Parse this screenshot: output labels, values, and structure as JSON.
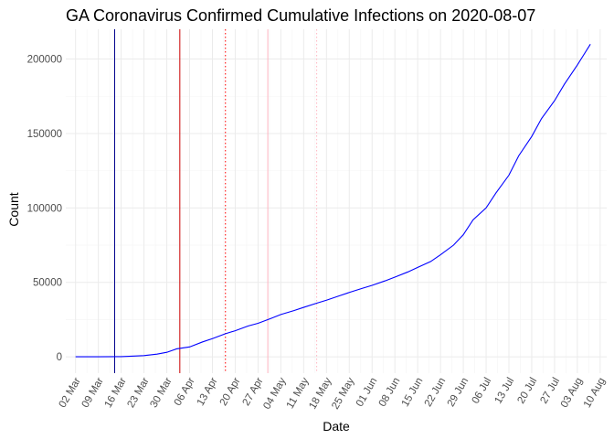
{
  "chart_data": {
    "type": "line",
    "title": "GA Coronavirus Confirmed Cumulative Infections on 2020-08-07",
    "xlabel": "Date",
    "ylabel": "Count",
    "x_range": [
      "2020-02-28",
      "2020-08-12"
    ],
    "ylim": [
      -11000,
      220000
    ],
    "x_ticks": [
      {
        "date": "2020-03-02",
        "label": "02 Mar"
      },
      {
        "date": "2020-03-09",
        "label": "09 Mar"
      },
      {
        "date": "2020-03-16",
        "label": "16 Mar"
      },
      {
        "date": "2020-03-23",
        "label": "23 Mar"
      },
      {
        "date": "2020-03-30",
        "label": "30 Mar"
      },
      {
        "date": "2020-04-06",
        "label": "06 Apr"
      },
      {
        "date": "2020-04-13",
        "label": "13 Apr"
      },
      {
        "date": "2020-04-20",
        "label": "20 Apr"
      },
      {
        "date": "2020-04-27",
        "label": "27 Apr"
      },
      {
        "date": "2020-05-04",
        "label": "04 May"
      },
      {
        "date": "2020-05-11",
        "label": "11 May"
      },
      {
        "date": "2020-05-18",
        "label": "18 May"
      },
      {
        "date": "2020-05-25",
        "label": "25 May"
      },
      {
        "date": "2020-06-01",
        "label": "01 Jun"
      },
      {
        "date": "2020-06-08",
        "label": "08 Jun"
      },
      {
        "date": "2020-06-15",
        "label": "15 Jun"
      },
      {
        "date": "2020-06-22",
        "label": "22 Jun"
      },
      {
        "date": "2020-06-29",
        "label": "29 Jun"
      },
      {
        "date": "2020-07-06",
        "label": "06 Jul"
      },
      {
        "date": "2020-07-13",
        "label": "13 Jul"
      },
      {
        "date": "2020-07-20",
        "label": "20 Jul"
      },
      {
        "date": "2020-07-27",
        "label": "27 Jul"
      },
      {
        "date": "2020-08-03",
        "label": "03 Aug"
      },
      {
        "date": "2020-08-10",
        "label": "10 Aug"
      }
    ],
    "y_ticks": [
      {
        "value": 0,
        "label": "0"
      },
      {
        "value": 50000,
        "label": "50000"
      },
      {
        "value": 100000,
        "label": "100000"
      },
      {
        "value": 150000,
        "label": "150000"
      },
      {
        "value": 200000,
        "label": "200000"
      }
    ],
    "grid": true,
    "series": [
      {
        "color": "#0000ff",
        "points": [
          [
            "2020-03-02",
            0
          ],
          [
            "2020-03-09",
            0
          ],
          [
            "2020-03-16",
            100
          ],
          [
            "2020-03-20",
            450
          ],
          [
            "2020-03-23",
            800
          ],
          [
            "2020-03-27",
            1800
          ],
          [
            "2020-03-30",
            3000
          ],
          [
            "2020-04-02",
            5300
          ],
          [
            "2020-04-06",
            6600
          ],
          [
            "2020-04-10",
            10000
          ],
          [
            "2020-04-13",
            12200
          ],
          [
            "2020-04-17",
            15500
          ],
          [
            "2020-04-20",
            17500
          ],
          [
            "2020-04-24",
            20700
          ],
          [
            "2020-04-27",
            22500
          ],
          [
            "2020-05-01",
            25800
          ],
          [
            "2020-05-04",
            28400
          ],
          [
            "2020-05-08",
            31000
          ],
          [
            "2020-05-11",
            33200
          ],
          [
            "2020-05-15",
            36000
          ],
          [
            "2020-05-18",
            38000
          ],
          [
            "2020-05-22",
            41000
          ],
          [
            "2020-05-25",
            43200
          ],
          [
            "2020-05-29",
            46000
          ],
          [
            "2020-06-01",
            48000
          ],
          [
            "2020-06-05",
            51000
          ],
          [
            "2020-06-08",
            53500
          ],
          [
            "2020-06-12",
            57000
          ],
          [
            "2020-06-15",
            60000
          ],
          [
            "2020-06-19",
            64000
          ],
          [
            "2020-06-22",
            68500
          ],
          [
            "2020-06-26",
            75000
          ],
          [
            "2020-06-29",
            82000
          ],
          [
            "2020-07-02",
            92000
          ],
          [
            "2020-07-06",
            100000
          ],
          [
            "2020-07-09",
            110000
          ],
          [
            "2020-07-13",
            122000
          ],
          [
            "2020-07-16",
            135000
          ],
          [
            "2020-07-20",
            148000
          ],
          [
            "2020-07-23",
            160000
          ],
          [
            "2020-07-27",
            172000
          ],
          [
            "2020-07-30",
            183000
          ],
          [
            "2020-08-03",
            196000
          ],
          [
            "2020-08-07",
            210000
          ]
        ]
      }
    ],
    "vertical_lines": [
      {
        "date": "2020-03-14",
        "color": "#00008b",
        "style": "solid"
      },
      {
        "date": "2020-04-03",
        "color": "#cc0000",
        "style": "solid"
      },
      {
        "date": "2020-04-17",
        "color": "#ff0000",
        "style": "dotted"
      },
      {
        "date": "2020-04-30",
        "color": "#ffb6c1",
        "style": "solid"
      },
      {
        "date": "2020-05-15",
        "color": "#ffb6c1",
        "style": "dotted"
      }
    ]
  }
}
